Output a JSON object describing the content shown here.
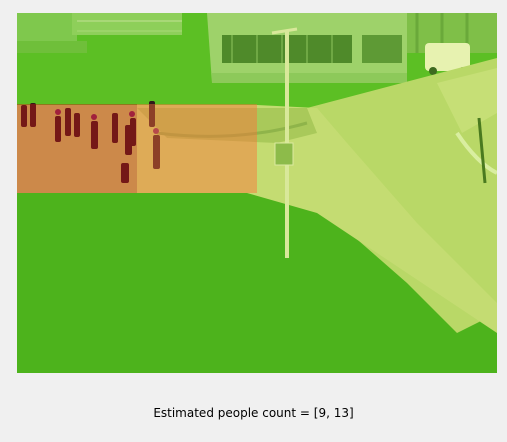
{
  "caption": "Estimated people count = [9, 13]",
  "colors": {
    "window_background": "#f0f0f0",
    "grass": "#4fb41d",
    "pavement": "#c8dc6e",
    "heatmap_high": "#d61614",
    "heatmap_medium": "#ff6e37"
  }
}
